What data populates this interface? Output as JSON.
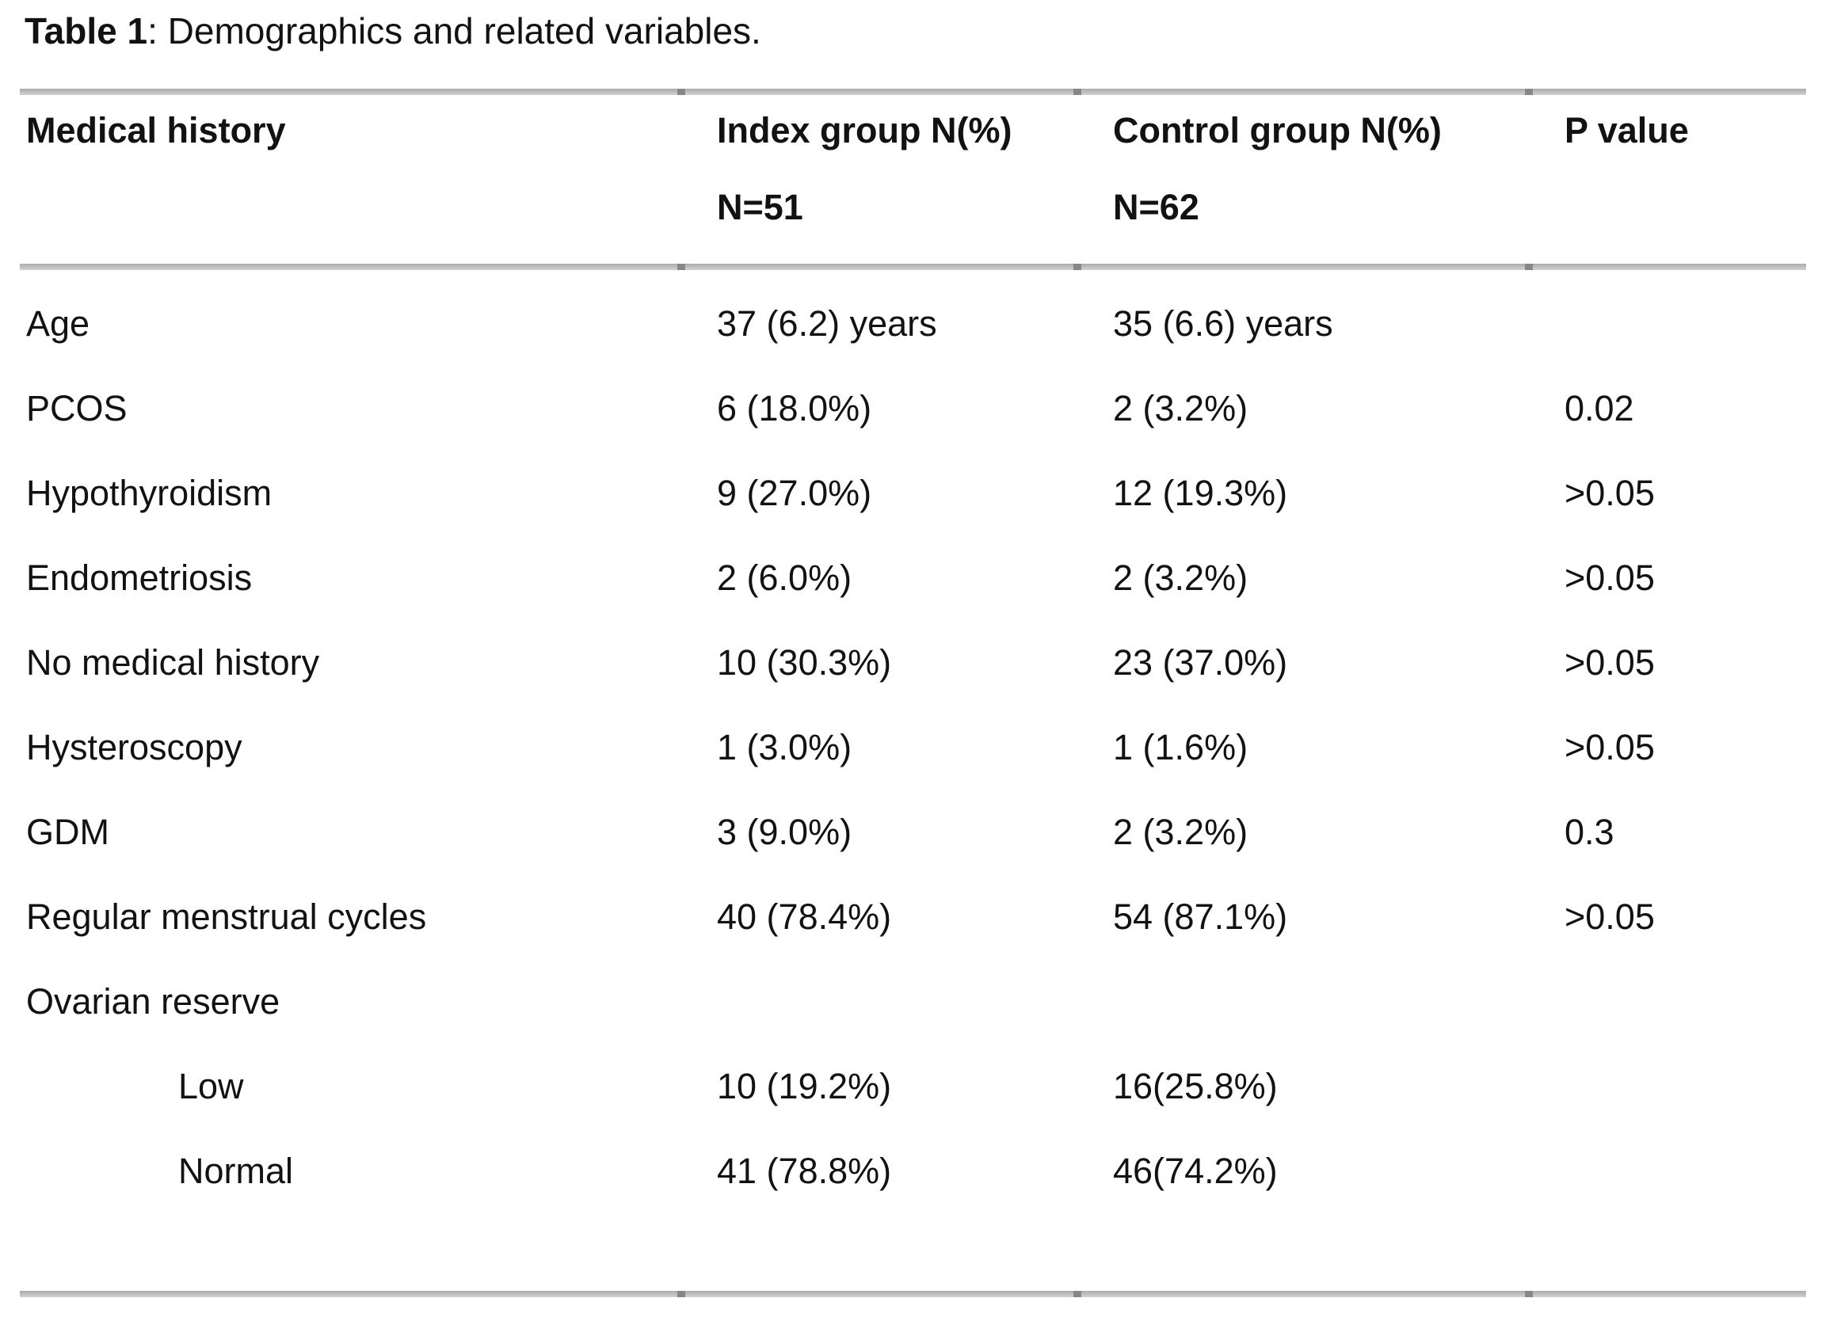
{
  "title": {
    "bold": "Table 1",
    "rest": ": Demographics and related variables."
  },
  "table": {
    "header": {
      "col1_line1": "Medical history",
      "col1_line2": "",
      "col2_line1": "Index group N(%)",
      "col2_line2": "N=51",
      "col3_line1": "Control group N(%)",
      "col3_line2": "N=62",
      "col4_line1": "P value",
      "col4_line2": ""
    },
    "rows": [
      {
        "label": "Age",
        "index": "37 (6.2) years",
        "control": "35 (6.6) years",
        "p": ""
      },
      {
        "label": "PCOS",
        "index": "6 (18.0%)",
        "control": "2 (3.2%)",
        "p": "0.02"
      },
      {
        "label": "Hypothyroidism",
        "index": "9 (27.0%)",
        "control": "12 (19.3%)",
        "p": ">0.05"
      },
      {
        "label": "Endometriosis",
        "index": "2 (6.0%)",
        "control": "2 (3.2%)",
        "p": ">0.05"
      },
      {
        "label": "No medical history",
        "index": "10 (30.3%)",
        "control": "23 (37.0%)",
        "p": ">0.05"
      },
      {
        "label": "Hysteroscopy",
        "index": "1 (3.0%)",
        "control": "1 (1.6%)",
        "p": ">0.05"
      },
      {
        "label": "GDM",
        "index": "3 (9.0%)",
        "control": "2 (3.2%)",
        "p": "0.3"
      },
      {
        "label": "Regular menstrual cycles",
        "index": "40 (78.4%)",
        "control": "54 (87.1%)",
        "p": ">0.05"
      },
      {
        "label": "Ovarian reserve",
        "index": "",
        "control": "",
        "p": ""
      },
      {
        "label": "Low",
        "index": "10 (19.2%)",
        "control": "16(25.8%)",
        "p": ""
      },
      {
        "label": "Normal",
        "index": "41 (78.8%)",
        "control": "46(74.2%)",
        "p": ""
      }
    ]
  },
  "colors": {
    "rule_gray": "#bdbdbd",
    "rule_tick_gray": "#878787",
    "text": "#121212",
    "background": "#ffffff"
  }
}
